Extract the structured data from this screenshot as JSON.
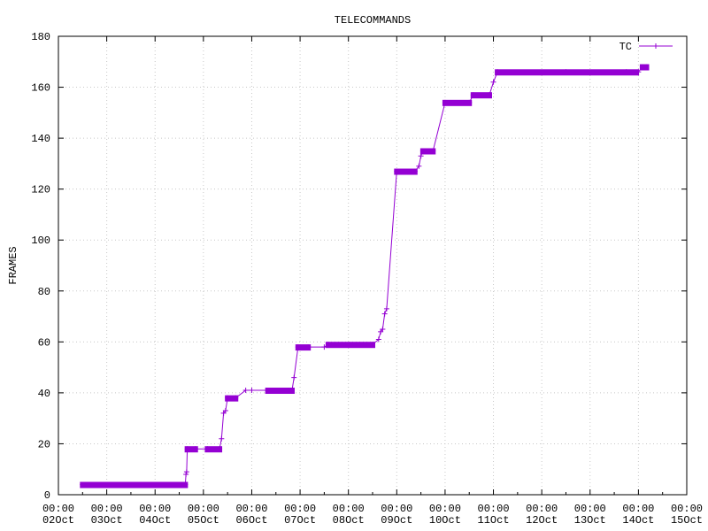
{
  "colors": {
    "series": "#9400d3",
    "axis": "#000000",
    "grid": "#c8c8c8"
  },
  "chart_data": {
    "type": "line",
    "title": "TELECOMMANDS",
    "xlabel": "",
    "ylabel": "FRAMES",
    "xlim": [
      "2019-10-02",
      "2019-10-15"
    ],
    "ylim": [
      0,
      180
    ],
    "yticks": [
      0,
      20,
      40,
      60,
      80,
      100,
      120,
      140,
      160,
      180
    ],
    "xticks": [
      {
        "time": "00:00",
        "date": "02Oct"
      },
      {
        "time": "00:00",
        "date": "03Oct"
      },
      {
        "time": "00:00",
        "date": "04Oct"
      },
      {
        "time": "00:00",
        "date": "05Oct"
      },
      {
        "time": "00:00",
        "date": "06Oct"
      },
      {
        "time": "00:00",
        "date": "07Oct"
      },
      {
        "time": "00:00",
        "date": "08Oct"
      },
      {
        "time": "00:00",
        "date": "09Oct"
      },
      {
        "time": "00:00",
        "date": "10Oct"
      },
      {
        "time": "00:00",
        "date": "11Oct"
      },
      {
        "time": "00:00",
        "date": "12Oct"
      },
      {
        "time": "00:00",
        "date": "13Oct"
      },
      {
        "time": "00:00",
        "date": "14Oct"
      },
      {
        "time": "00:00",
        "date": "15Oct"
      }
    ],
    "grid": true,
    "legend_position": "top-right",
    "series": [
      {
        "name": "TC",
        "marker": "plus",
        "points": [
          [
            "2019-10-02 12:00",
            4
          ],
          [
            "2019-10-04 15:00",
            4
          ],
          [
            "2019-10-04 15:20",
            8
          ],
          [
            "2019-10-04 15:40",
            9
          ],
          [
            "2019-10-04 16:00",
            18
          ],
          [
            "2019-10-04 20:00",
            18
          ],
          [
            "2019-10-05 02:00",
            18
          ],
          [
            "2019-10-05 08:00",
            18
          ],
          [
            "2019-10-05 09:00",
            22
          ],
          [
            "2019-10-05 10:00",
            32
          ],
          [
            "2019-10-05 11:00",
            33
          ],
          [
            "2019-10-05 12:00",
            38
          ],
          [
            "2019-10-05 16:00",
            38
          ],
          [
            "2019-10-05 21:00",
            41
          ],
          [
            "2019-10-06 00:00",
            41
          ],
          [
            "2019-10-06 18:00",
            41
          ],
          [
            "2019-10-06 20:00",
            41
          ],
          [
            "2019-10-06 21:00",
            46
          ],
          [
            "2019-10-06 23:00",
            58
          ],
          [
            "2019-10-07 04:00",
            58
          ],
          [
            "2019-10-07 12:00",
            58
          ],
          [
            "2019-10-07 14:00",
            59
          ],
          [
            "2019-10-08 12:00",
            59
          ],
          [
            "2019-10-08 15:00",
            61
          ],
          [
            "2019-10-08 16:00",
            64
          ],
          [
            "2019-10-08 17:00",
            65
          ],
          [
            "2019-10-08 18:00",
            71
          ],
          [
            "2019-10-08 19:00",
            73
          ],
          [
            "2019-10-09 00:00",
            127
          ],
          [
            "2019-10-09 09:00",
            127
          ],
          [
            "2019-10-09 11:00",
            129
          ],
          [
            "2019-10-09 12:00",
            133
          ],
          [
            "2019-10-09 13:00",
            135
          ],
          [
            "2019-10-09 18:00",
            135
          ],
          [
            "2019-10-10 00:00",
            154
          ],
          [
            "2019-10-10 12:00",
            154
          ],
          [
            "2019-10-10 14:00",
            157
          ],
          [
            "2019-10-10 22:00",
            157
          ],
          [
            "2019-10-11 00:00",
            162
          ],
          [
            "2019-10-11 02:00",
            166
          ],
          [
            "2019-10-12 12:00",
            166
          ],
          [
            "2019-10-13 18:00",
            166
          ],
          [
            "2019-10-14 00:00",
            166
          ],
          [
            "2019-10-14 02:00",
            168
          ],
          [
            "2019-10-14 04:00",
            168
          ]
        ],
        "dense_ranges": [
          {
            "from": "2019-10-02 12:00",
            "to": "2019-10-04 15:00",
            "value": 4
          },
          {
            "from": "2019-10-04 16:00",
            "to": "2019-10-04 20:00",
            "value": 18
          },
          {
            "from": "2019-10-05 02:00",
            "to": "2019-10-05 08:00",
            "value": 18
          },
          {
            "from": "2019-10-05 12:00",
            "to": "2019-10-05 16:00",
            "value": 38
          },
          {
            "from": "2019-10-06 08:00",
            "to": "2019-10-06 20:00",
            "value": 41
          },
          {
            "from": "2019-10-06 23:00",
            "to": "2019-10-07 04:00",
            "value": 58
          },
          {
            "from": "2019-10-07 14:00",
            "to": "2019-10-08 12:00",
            "value": 59
          },
          {
            "from": "2019-10-09 00:00",
            "to": "2019-10-09 09:00",
            "value": 127
          },
          {
            "from": "2019-10-09 13:00",
            "to": "2019-10-09 18:00",
            "value": 135
          },
          {
            "from": "2019-10-10 00:00",
            "to": "2019-10-10 12:00",
            "value": 154
          },
          {
            "from": "2019-10-10 14:00",
            "to": "2019-10-10 22:00",
            "value": 157
          },
          {
            "from": "2019-10-11 02:00",
            "to": "2019-10-13 23:00",
            "value": 166
          },
          {
            "from": "2019-10-14 02:00",
            "to": "2019-10-14 04:00",
            "value": 168
          }
        ]
      }
    ]
  }
}
